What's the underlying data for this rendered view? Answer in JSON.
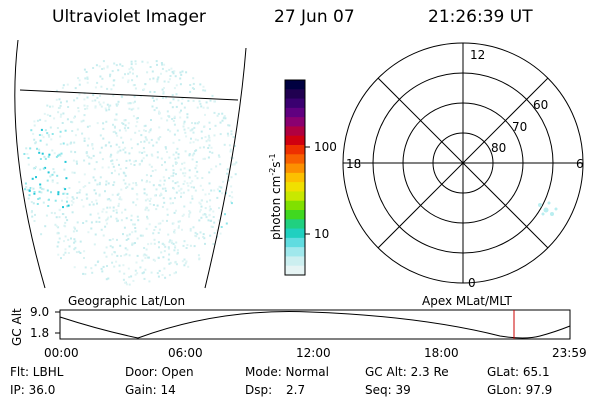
{
  "header": {
    "instrument": "Ultraviolet Imager",
    "date": "27 Jun 07",
    "time": "21:26:39 UT"
  },
  "colorbar": {
    "unit_label": "photon cm",
    "unit_exp1": "-2",
    "unit_s": "s",
    "unit_exp2": "-1",
    "ticks": [
      "100",
      "10"
    ]
  },
  "polar_plot": {
    "mlt_labels": [
      "12",
      "18",
      "6",
      "0"
    ],
    "mlat_labels": [
      "60",
      "70",
      "80"
    ]
  },
  "orbit": {
    "ylabel": "GC Alt",
    "y_ticks": [
      "9.0",
      "1.8"
    ],
    "left_label": "Geographic Lat/Lon",
    "right_label": "Apex MLat/MLT",
    "x_ticks": [
      "00:00",
      "06:00",
      "12:00",
      "18:00",
      "23:59"
    ],
    "current_marker_time": "21:26",
    "marker_color": "#cc0000"
  },
  "status": {
    "row1": {
      "flt": "Flt: LBHL",
      "door": "Door: Open",
      "mode": "Mode: Normal",
      "gc_alt": "GC Alt: 2.3 Re",
      "glat": "GLat: 65.1"
    },
    "row2": {
      "ip": "IP: 36.0",
      "gain": "Gain: 14",
      "dsp_label": "Dsp:",
      "dsp_value": "2.7",
      "seq": "Seq: 39",
      "glon": "GLon: 97.9"
    }
  },
  "colors": {
    "aurora": "#8ee6ea",
    "aurora_bright": "#22c8d8",
    "line": "#000000"
  }
}
